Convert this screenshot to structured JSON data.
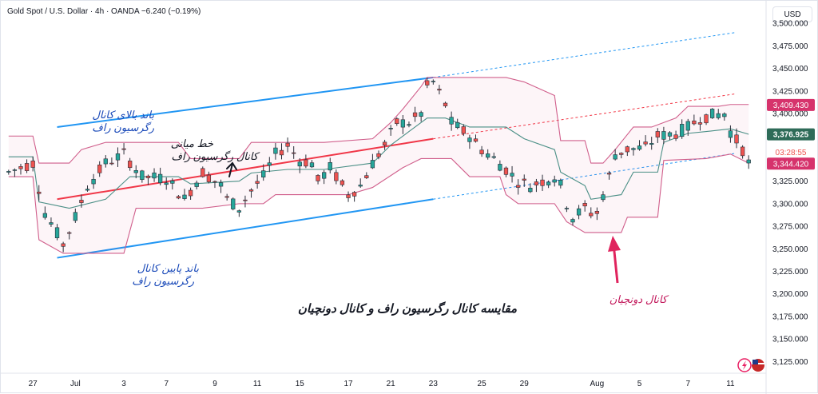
{
  "header": {
    "title": "Gold Spot / U.S. Dollar · 4h · OANDA",
    "change": "−6.240 (−0.19%)",
    "currency": "USD"
  },
  "price_tags": {
    "upper": "3,409.430",
    "last": "3,376.925",
    "timer": "03:28:55",
    "lower": "3,344.420"
  },
  "annotations": {
    "upper_band": [
      "باند بالای کانال",
      "رگرسیون راف"
    ],
    "mid_line": [
      "خط میانی",
      "کانال رگرسیون راف"
    ],
    "lower_band": [
      "باند پایین کانال",
      "رگرسیون راف"
    ],
    "donchian": "کانال دونچیان",
    "caption": "مقایسه کانال رگرسیون راف و کانال دونچیان"
  },
  "colors": {
    "candle_up": "#26a69a",
    "candle_down": "#ef5350",
    "candle_ink": "#2a2e39",
    "regression_band": "#2196f3",
    "regression_mid": "#f23645",
    "donchian_band": "#d05e8b",
    "donchian_basis": "#4a8f86",
    "arrow": "#e0245e"
  },
  "chart_data": {
    "type": "candlestick",
    "symbol": "XAUUSD",
    "timeframe": "4h",
    "ylim": [
      3112,
      3525
    ],
    "yticks": [
      3125,
      3150,
      3175,
      3200,
      3225,
      3250,
      3275,
      3300,
      3325,
      3350,
      3375,
      3400,
      3425,
      3450,
      3475,
      3500
    ],
    "ytick_labels": [
      "3,125.000",
      "3,150.000",
      "3,175.000",
      "3,200.000",
      "3,225.000",
      "3,250.000",
      "3,275.000",
      "3,300.000",
      "3,325.000",
      "3,350.000",
      "3,375.000",
      "3,400.000",
      "3,425.000",
      "3,450.000",
      "3,475.000",
      "3,500.000"
    ],
    "x_labels": [
      {
        "label": "27",
        "bar": 4
      },
      {
        "label": "Jul",
        "bar": 11
      },
      {
        "label": "3",
        "bar": 19
      },
      {
        "label": "7",
        "bar": 26
      },
      {
        "label": "9",
        "bar": 34
      },
      {
        "label": "11",
        "bar": 41
      },
      {
        "label": "15",
        "bar": 48
      },
      {
        "label": "17",
        "bar": 56
      },
      {
        "label": "21",
        "bar": 63
      },
      {
        "label": "23",
        "bar": 70
      },
      {
        "label": "25",
        "bar": 78
      },
      {
        "label": "29",
        "bar": 85
      },
      {
        "label": "Aug",
        "bar": 97
      },
      {
        "label": "5",
        "bar": 104
      },
      {
        "label": "7",
        "bar": 112
      },
      {
        "label": "11",
        "bar": 119
      }
    ],
    "bars": 123,
    "close_path": [
      [
        0,
        3335
      ],
      [
        4,
        3345
      ],
      [
        6,
        3290
      ],
      [
        9,
        3255
      ],
      [
        11,
        3285
      ],
      [
        13,
        3320
      ],
      [
        16,
        3345
      ],
      [
        19,
        3355
      ],
      [
        22,
        3330
      ],
      [
        26,
        3328
      ],
      [
        29,
        3305
      ],
      [
        32,
        3335
      ],
      [
        35,
        3320
      ],
      [
        36,
        3305
      ],
      [
        38,
        3295
      ],
      [
        40,
        3315
      ],
      [
        42,
        3330
      ],
      [
        44,
        3355
      ],
      [
        46,
        3365
      ],
      [
        48,
        3348
      ],
      [
        50,
        3345
      ],
      [
        51,
        3325
      ],
      [
        53,
        3340
      ],
      [
        56,
        3310
      ],
      [
        58,
        3320
      ],
      [
        60,
        3345
      ],
      [
        62,
        3365
      ],
      [
        64,
        3390
      ],
      [
        66,
        3390
      ],
      [
        68,
        3400
      ],
      [
        69,
        3430
      ],
      [
        70,
        3435
      ],
      [
        72,
        3410
      ],
      [
        73,
        3390
      ],
      [
        76,
        3375
      ],
      [
        78,
        3360
      ],
      [
        80,
        3350
      ],
      [
        82,
        3338
      ],
      [
        84,
        3325
      ],
      [
        86,
        3320
      ],
      [
        88,
        3325
      ],
      [
        90,
        3330
      ],
      [
        91,
        3320
      ],
      [
        92,
        3300
      ],
      [
        93,
        3285
      ],
      [
        95,
        3295
      ],
      [
        96,
        3290
      ],
      [
        97,
        3290
      ],
      [
        99,
        3330
      ],
      [
        100,
        3355
      ],
      [
        102,
        3360
      ],
      [
        105,
        3362
      ],
      [
        107,
        3375
      ],
      [
        110,
        3378
      ],
      [
        112,
        3385
      ],
      [
        114,
        3395
      ],
      [
        116,
        3398
      ],
      [
        118,
        3400
      ],
      [
        119,
        3380
      ],
      [
        121,
        3360
      ],
      [
        122,
        3345
      ]
    ],
    "regression_channel": {
      "start_bar": 8,
      "end_bar": 70,
      "extend_to_bar": 120,
      "upper": [
        3385,
        3440,
        3490
      ],
      "mid": [
        3305,
        3372,
        3422
      ],
      "lower": [
        3240,
        3305,
        3356
      ]
    },
    "donchian_channel": {
      "upper": [
        [
          0,
          3375
        ],
        [
          4,
          3375
        ],
        [
          5,
          3345
        ],
        [
          10,
          3345
        ],
        [
          12,
          3360
        ],
        [
          16,
          3368
        ],
        [
          28,
          3368
        ],
        [
          30,
          3350
        ],
        [
          38,
          3350
        ],
        [
          40,
          3368
        ],
        [
          46,
          3368
        ],
        [
          52,
          3368
        ],
        [
          60,
          3372
        ],
        [
          63,
          3390
        ],
        [
          65,
          3405
        ],
        [
          68,
          3430
        ],
        [
          69,
          3440
        ],
        [
          72,
          3440
        ],
        [
          82,
          3440
        ],
        [
          85,
          3435
        ],
        [
          90,
          3420
        ],
        [
          91,
          3370
        ],
        [
          95,
          3370
        ],
        [
          96,
          3345
        ],
        [
          98,
          3345
        ],
        [
          100,
          3360
        ],
        [
          103,
          3385
        ],
        [
          106,
          3385
        ],
        [
          110,
          3395
        ],
        [
          112,
          3408
        ],
        [
          117,
          3408
        ],
        [
          119,
          3410
        ],
        [
          122,
          3410
        ]
      ],
      "lower": [
        [
          0,
          3330
        ],
        [
          4,
          3330
        ],
        [
          5,
          3260
        ],
        [
          9,
          3245
        ],
        [
          19,
          3245
        ],
        [
          21,
          3295
        ],
        [
          30,
          3295
        ],
        [
          32,
          3295
        ],
        [
          38,
          3300
        ],
        [
          42,
          3300
        ],
        [
          44,
          3310
        ],
        [
          53,
          3310
        ],
        [
          56,
          3310
        ],
        [
          60,
          3318
        ],
        [
          65,
          3340
        ],
        [
          68,
          3350
        ],
        [
          73,
          3350
        ],
        [
          76,
          3330
        ],
        [
          81,
          3330
        ],
        [
          82,
          3310
        ],
        [
          84,
          3300
        ],
        [
          90,
          3300
        ],
        [
          92,
          3280
        ],
        [
          95,
          3268
        ],
        [
          101,
          3268
        ],
        [
          102,
          3285
        ],
        [
          107,
          3285
        ],
        [
          108,
          3348
        ],
        [
          115,
          3350
        ],
        [
          119,
          3355
        ],
        [
          122,
          3345
        ]
      ],
      "basis": [
        [
          0,
          3352
        ],
        [
          4,
          3352
        ],
        [
          5,
          3302
        ],
        [
          10,
          3295
        ],
        [
          16,
          3305
        ],
        [
          20,
          3330
        ],
        [
          28,
          3330
        ],
        [
          30,
          3322
        ],
        [
          38,
          3325
        ],
        [
          40,
          3334
        ],
        [
          46,
          3338
        ],
        [
          52,
          3338
        ],
        [
          60,
          3345
        ],
        [
          63,
          3365
        ],
        [
          66,
          3380
        ],
        [
          69,
          3395
        ],
        [
          72,
          3395
        ],
        [
          76,
          3385
        ],
        [
          82,
          3385
        ],
        [
          85,
          3372
        ],
        [
          90,
          3360
        ],
        [
          91,
          3335
        ],
        [
          95,
          3320
        ],
        [
          96,
          3305
        ],
        [
          101,
          3310
        ],
        [
          103,
          3335
        ],
        [
          107,
          3335
        ],
        [
          108,
          3368
        ],
        [
          112,
          3378
        ],
        [
          115,
          3380
        ],
        [
          119,
          3383
        ],
        [
          122,
          3377
        ]
      ]
    },
    "last_price": 3376.925,
    "upper_value": 3409.43,
    "lower_value": 3344.42
  }
}
